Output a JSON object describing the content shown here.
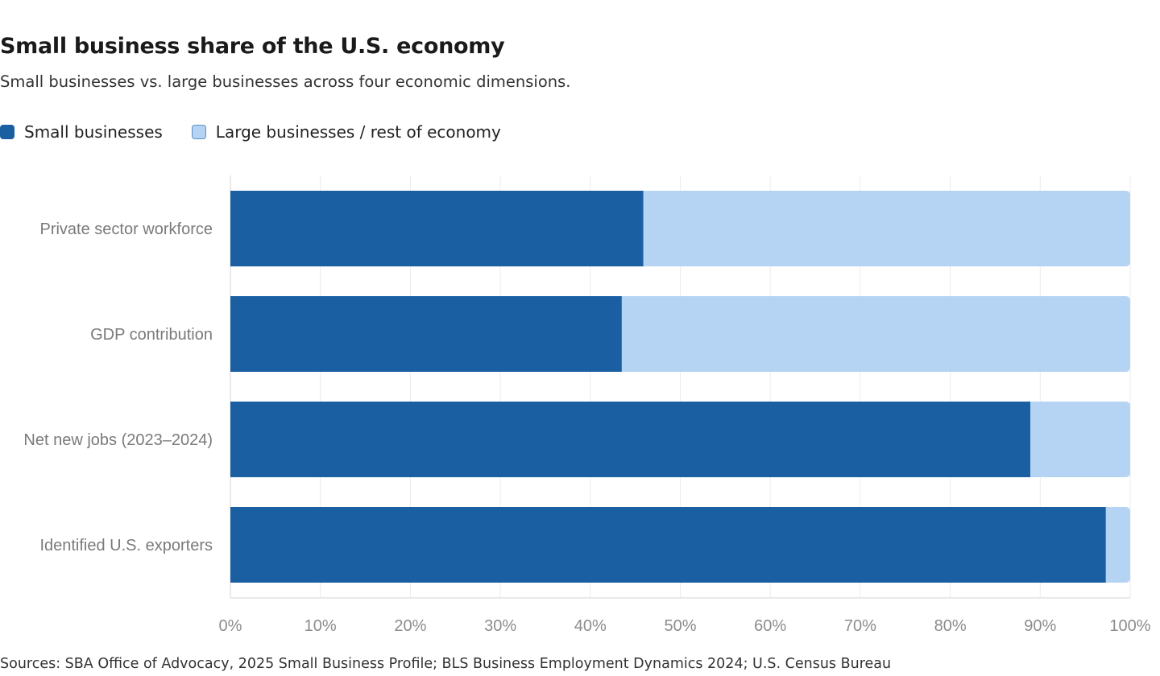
{
  "header": {
    "title": "Small business share of the U.S. economy",
    "subtitle": "Small businesses vs. large businesses across four economic dimensions."
  },
  "legend": {
    "small_label": "Small businesses",
    "large_label": "Large businesses / rest of economy"
  },
  "colors": {
    "small": "#1b5fa3",
    "large": "#b5d4f3",
    "grid": "#ececec",
    "axis_text": "#8c8c8c",
    "category_text": "#7a7a7a"
  },
  "chart_data": {
    "type": "bar",
    "orientation": "horizontal",
    "stacked": true,
    "categories": [
      "Private sector workforce",
      "GDP contribution",
      "Net new jobs (2023–2024)",
      "Identified U.S. exporters"
    ],
    "series": [
      {
        "name": "Small businesses",
        "values": [
          45.9,
          43.5,
          88.9,
          97.3
        ]
      },
      {
        "name": "Large businesses / rest of economy",
        "values": [
          54.1,
          56.5,
          11.1,
          2.7
        ]
      }
    ],
    "xlim": [
      0,
      100
    ],
    "xticks": [
      "0%",
      "10%",
      "20%",
      "30%",
      "40%",
      "50%",
      "60%",
      "70%",
      "80%",
      "90%",
      "100%"
    ],
    "grid": true,
    "legend_position": "top-left"
  },
  "footer": {
    "source": "Sources: SBA Office of Advocacy, 2025 Small Business Profile; BLS Business Employment Dynamics 2024; U.S. Census Bureau"
  }
}
